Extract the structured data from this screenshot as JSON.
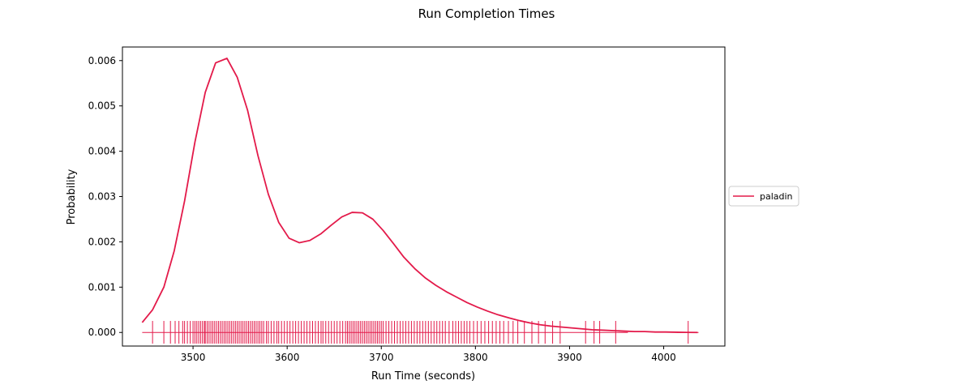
{
  "chart_data": {
    "type": "line",
    "title": "Run Completion Times",
    "xlabel": "Run Time (seconds)",
    "ylabel": "Probability",
    "xlim": [
      3425,
      4065
    ],
    "ylim": [
      -0.0003,
      0.0063
    ],
    "x_ticks": [
      3500,
      3600,
      3700,
      3800,
      3900,
      4000
    ],
    "x_tick_labels": [
      "3500",
      "3600",
      "3700",
      "3800",
      "3900",
      "4000"
    ],
    "y_ticks": [
      0.0,
      0.001,
      0.002,
      0.003,
      0.004,
      0.005,
      0.006
    ],
    "y_tick_labels": [
      "0.000",
      "0.001",
      "0.002",
      "0.003",
      "0.004",
      "0.005",
      "0.006"
    ],
    "grid": false,
    "legend_position": "right",
    "series": [
      {
        "name": "paladin",
        "color": "#e31a4a",
        "x": [
          3446,
          3457,
          3469,
          3480,
          3491,
          3502,
          3513,
          3524,
          3536,
          3547,
          3558,
          3569,
          3580,
          3591,
          3602,
          3613,
          3624,
          3636,
          3647,
          3658,
          3669,
          3680,
          3691,
          3702,
          3713,
          3724,
          3736,
          3747,
          3758,
          3769,
          3780,
          3791,
          3802,
          3813,
          3824,
          3836,
          3847,
          3858,
          3869,
          3880,
          3891,
          3902,
          3913,
          3924,
          3936,
          3947,
          3958,
          3969,
          3980,
          3991,
          4002,
          4013,
          4024,
          4036
        ],
        "y": [
          0.00022,
          0.0005,
          0.001,
          0.0018,
          0.0029,
          0.0042,
          0.0053,
          0.00595,
          0.00605,
          0.00563,
          0.0049,
          0.0039,
          0.00305,
          0.00243,
          0.00208,
          0.00198,
          0.00203,
          0.00218,
          0.00237,
          0.00255,
          0.00265,
          0.00264,
          0.0025,
          0.00225,
          0.00196,
          0.00166,
          0.0014,
          0.0012,
          0.00104,
          0.0009,
          0.00078,
          0.00066,
          0.00056,
          0.00047,
          0.00039,
          0.00032,
          0.00026,
          0.00021,
          0.00017,
          0.00014,
          0.00012,
          0.0001,
          8e-05,
          6e-05,
          5e-05,
          4e-05,
          3e-05,
          2e-05,
          2e-05,
          1e-05,
          1e-05,
          5e-06,
          2e-06,
          0.0
        ]
      }
    ],
    "rug": {
      "series": "paladin",
      "x": [
        3457,
        3469,
        3476,
        3481,
        3485,
        3489,
        3491,
        3494,
        3497,
        3500,
        3502,
        3504,
        3506,
        3508,
        3510,
        3512,
        3513,
        3515,
        3517,
        3519,
        3521,
        3523,
        3525,
        3527,
        3529,
        3531,
        3533,
        3535,
        3537,
        3539,
        3541,
        3543,
        3545,
        3547,
        3549,
        3551,
        3553,
        3555,
        3557,
        3559,
        3561,
        3563,
        3565,
        3567,
        3569,
        3571,
        3573,
        3575,
        3578,
        3580,
        3583,
        3586,
        3589,
        3591,
        3594,
        3597,
        3600,
        3603,
        3606,
        3609,
        3612,
        3615,
        3618,
        3621,
        3624,
        3627,
        3630,
        3633,
        3636,
        3638,
        3641,
        3644,
        3647,
        3650,
        3653,
        3656,
        3659,
        3662,
        3664,
        3666,
        3668,
        3670,
        3672,
        3674,
        3676,
        3678,
        3680,
        3682,
        3684,
        3686,
        3688,
        3690,
        3692,
        3694,
        3696,
        3698,
        3700,
        3702,
        3705,
        3708,
        3711,
        3714,
        3717,
        3720,
        3723,
        3726,
        3729,
        3732,
        3735,
        3738,
        3741,
        3744,
        3747,
        3750,
        3753,
        3756,
        3759,
        3762,
        3765,
        3768,
        3772,
        3776,
        3779,
        3782,
        3785,
        3788,
        3791,
        3794,
        3798,
        3802,
        3806,
        3810,
        3814,
        3818,
        3822,
        3826,
        3830,
        3835,
        3840,
        3845,
        3852,
        3860,
        3867,
        3874,
        3882,
        3890,
        3917,
        3926,
        3932,
        3949,
        4026
      ],
      "median_line_x": [
        3446,
        3962
      ],
      "tail_line_x": [
        4014,
        4037
      ]
    }
  }
}
